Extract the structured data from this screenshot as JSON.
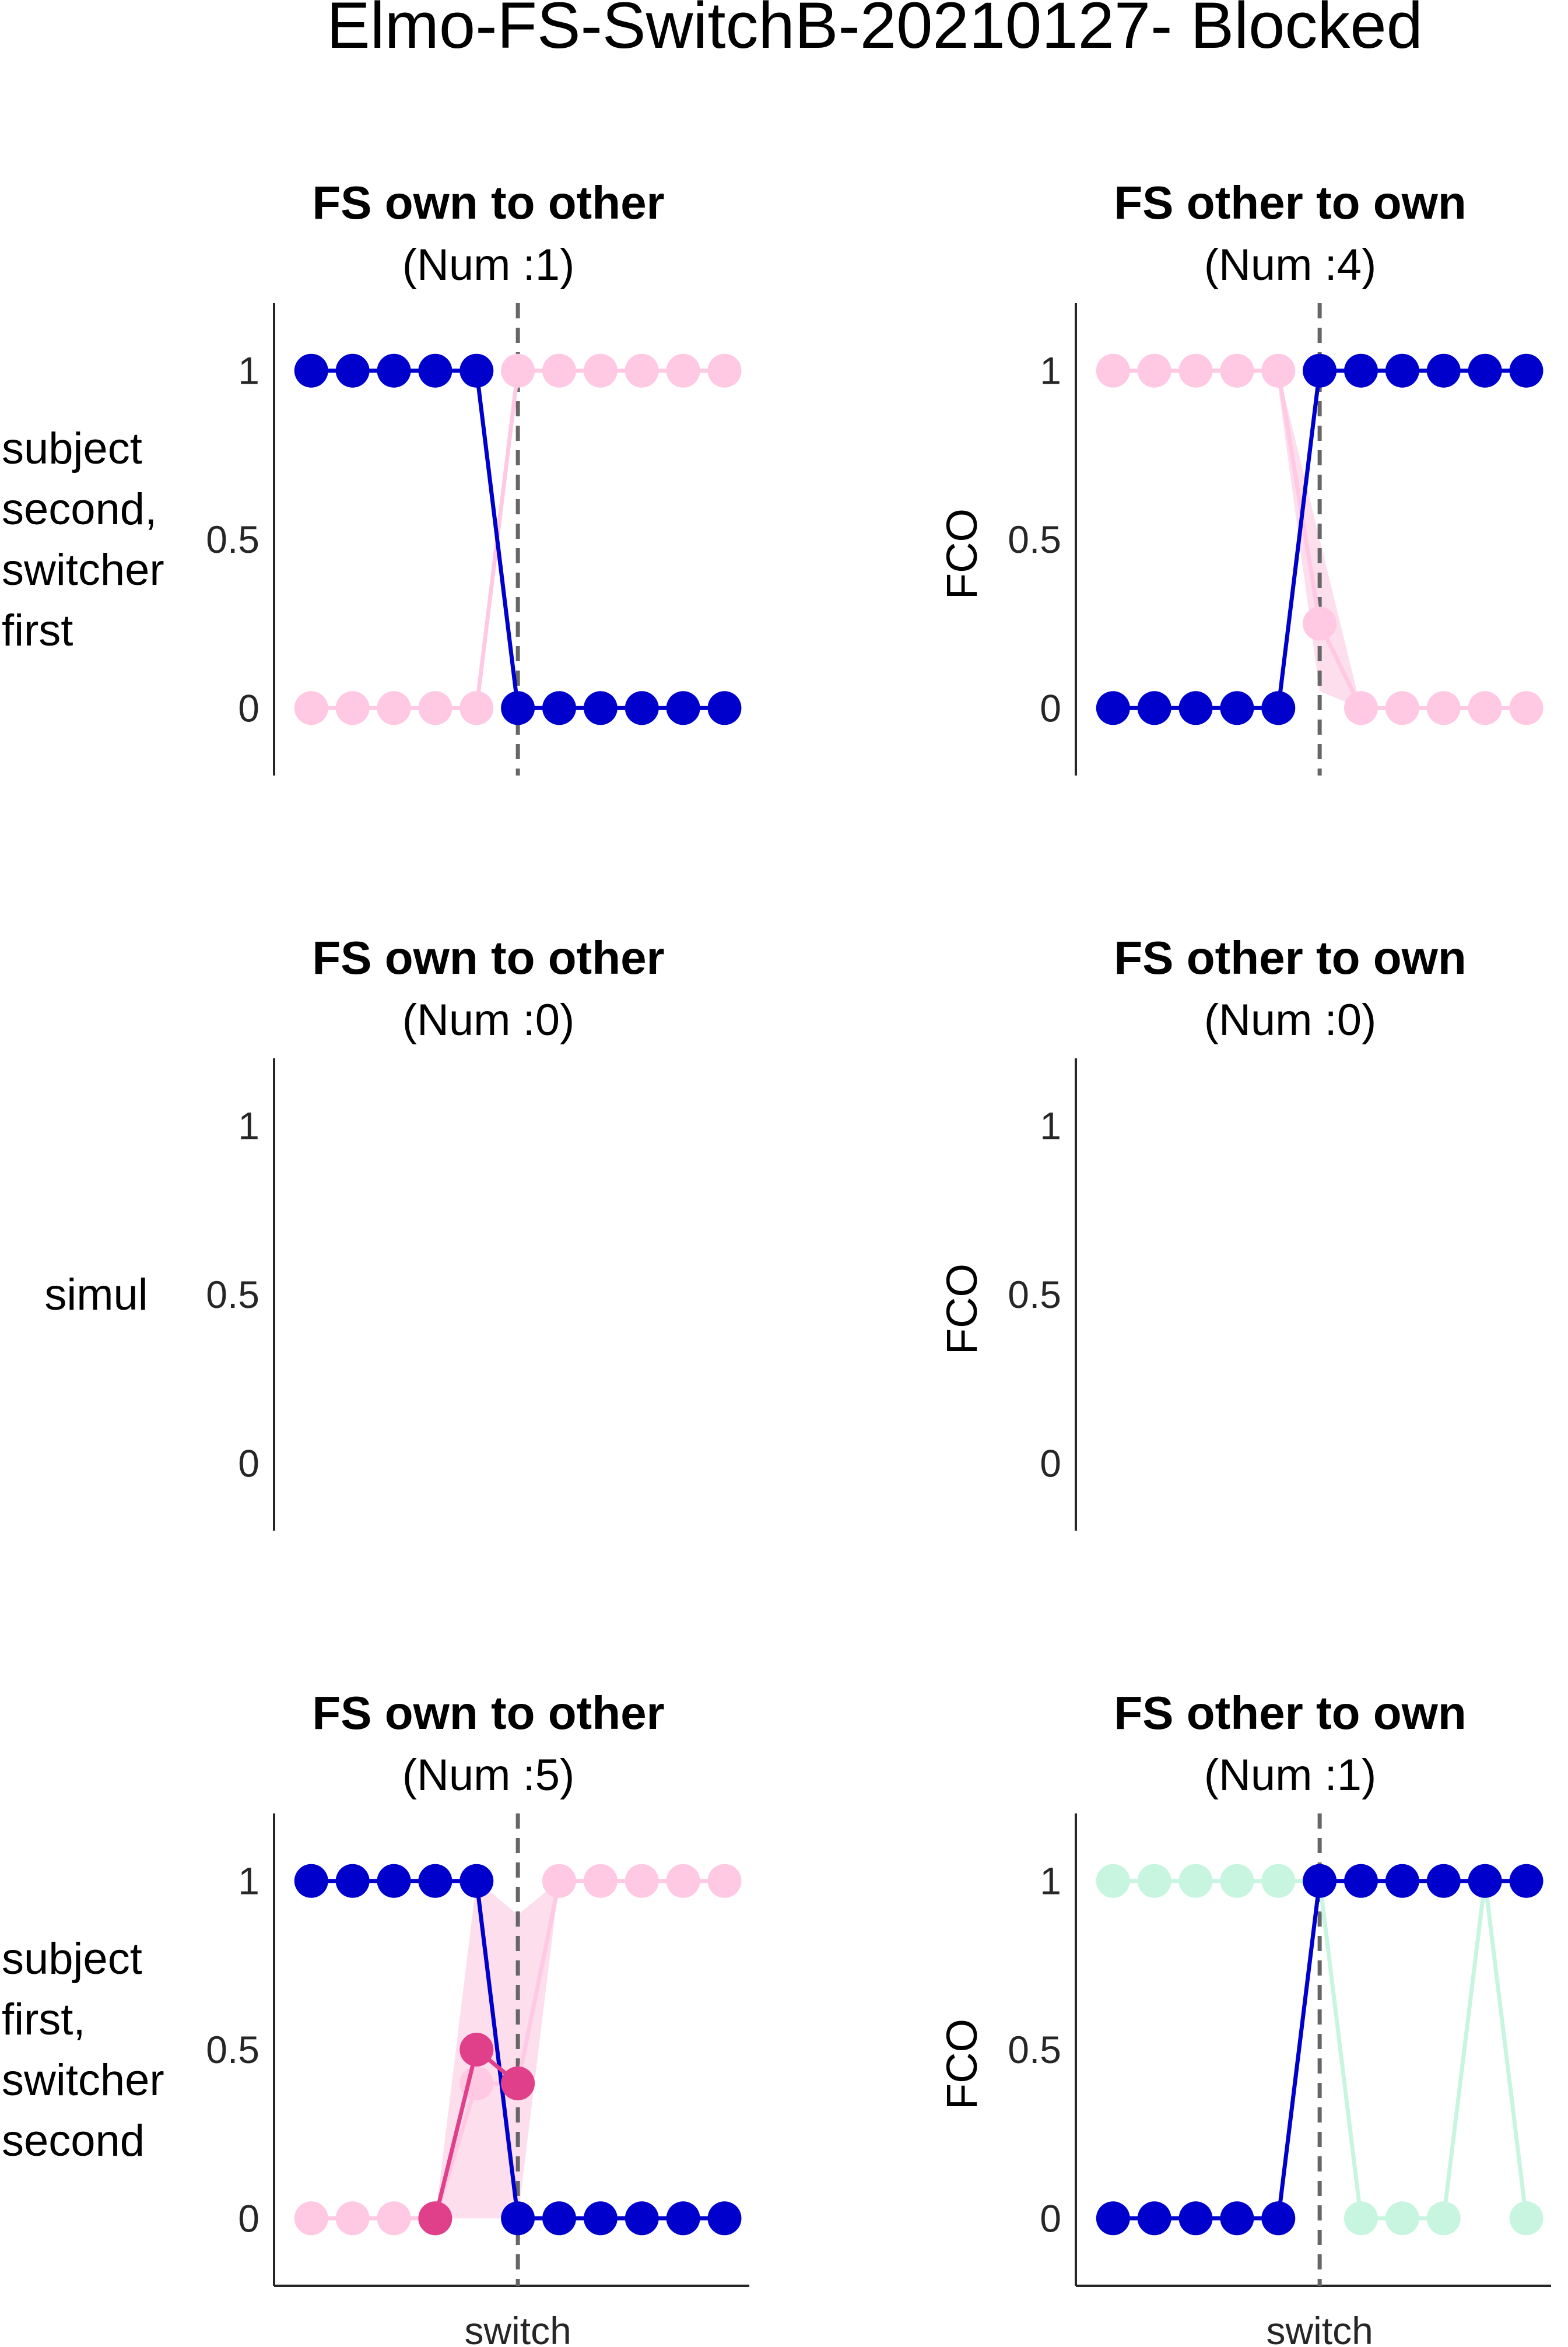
{
  "figure": {
    "title": "Elmo-FS-SwitchB-20210127- Blocked"
  },
  "colors": {
    "own": "#0000cc",
    "other": "#ffc8e3",
    "other_fill": "#f5a0c8",
    "mean_pink": "#e0408a",
    "mint": "#c8f5e0",
    "axis": "#262626",
    "switch_line": "#666666"
  },
  "chart_data": [
    {
      "type": "line",
      "title": "FS own to other",
      "subtitle": "(Num :1)",
      "row_label": "subject second, switcher first",
      "row_label_lines": [
        "subject",
        "second,",
        "switcher",
        "first"
      ],
      "ylabel": "",
      "xlabel": "",
      "ylim": [
        -0.2,
        1.2
      ],
      "yticks": [
        "0",
        "0.5",
        "1"
      ],
      "x": [
        -5,
        -4,
        -3,
        -2,
        -1,
        0,
        1,
        2,
        3,
        4,
        5
      ],
      "switch_x": 0,
      "series": [
        {
          "color": "own",
          "values": [
            1,
            1,
            1,
            1,
            1,
            0,
            0,
            0,
            0,
            0,
            0
          ]
        },
        {
          "color": "other",
          "values": [
            0,
            0,
            0,
            0,
            0,
            1,
            1,
            1,
            1,
            1,
            1
          ]
        }
      ]
    },
    {
      "type": "line",
      "title": "FS other to own",
      "subtitle": "(Num :4)",
      "row_label": "",
      "ylabel": "FCO",
      "xlabel": "",
      "ylim": [
        -0.2,
        1.2
      ],
      "yticks": [
        "0",
        "0.5",
        "1"
      ],
      "x": [
        -5,
        -4,
        -3,
        -2,
        -1,
        0,
        1,
        2,
        3,
        4,
        5
      ],
      "switch_x": 0,
      "series": [
        {
          "color": "own",
          "values": [
            0,
            0,
            0,
            0,
            0,
            1,
            1,
            1,
            1,
            1,
            1
          ]
        },
        {
          "color": "other",
          "values": [
            1,
            1,
            1,
            1,
            1,
            0.25,
            0,
            0,
            0,
            0,
            0
          ],
          "band": [
            [
              -1,
              1,
              0.95
            ],
            [
              0,
              0.5,
              0.05
            ],
            [
              1,
              0,
              0
            ]
          ]
        }
      ]
    },
    {
      "type": "line",
      "title": "FS own to other",
      "subtitle": "(Num :0)",
      "row_label": "simul",
      "row_label_lines": [
        "simul"
      ],
      "ylabel": "",
      "xlabel": "",
      "ylim": [
        -0.2,
        1.2
      ],
      "yticks": [
        "0",
        "0.5",
        "1"
      ],
      "x": [],
      "series": []
    },
    {
      "type": "line",
      "title": "FS other to own",
      "subtitle": "(Num :0)",
      "row_label": "",
      "ylabel": "FCO",
      "xlabel": "",
      "ylim": [
        -0.2,
        1.2
      ],
      "yticks": [
        "0",
        "0.5",
        "1"
      ],
      "x": [],
      "series": []
    },
    {
      "type": "line",
      "title": "FS own to other",
      "subtitle": "(Num :5)",
      "row_label": "subject first, switcher second",
      "row_label_lines": [
        "subject",
        "first,",
        "switcher",
        "second"
      ],
      "ylabel": "",
      "xlabel": "switch",
      "ylim": [
        -0.2,
        1.2
      ],
      "yticks": [
        "0",
        "0.5",
        "1"
      ],
      "x": [
        -5,
        -4,
        -3,
        -2,
        -1,
        0,
        1,
        2,
        3,
        4,
        5
      ],
      "switch_x": 0,
      "series": [
        {
          "color": "own",
          "values": [
            1,
            1,
            1,
            1,
            1,
            0,
            0,
            0,
            0,
            0,
            0
          ]
        },
        {
          "color": "other",
          "values": [
            0,
            0,
            0,
            0,
            0.4,
            0.4,
            1,
            1,
            1,
            1,
            1
          ],
          "band": [
            [
              -2,
              0,
              0
            ],
            [
              -1,
              1,
              0
            ],
            [
              0,
              0.9,
              0
            ],
            [
              1,
              1,
              1
            ]
          ]
        },
        {
          "color": "mean_pink",
          "values": [
            null,
            null,
            null,
            0,
            0.5,
            0.4,
            null,
            null,
            null,
            null,
            null
          ]
        }
      ]
    },
    {
      "type": "line",
      "title": "FS other to own",
      "subtitle": "(Num :1)",
      "row_label": "",
      "ylabel": "FCO",
      "xlabel": "switch",
      "ylim": [
        -0.2,
        1.2
      ],
      "yticks": [
        "0",
        "0.5",
        "1"
      ],
      "x": [
        -5,
        -4,
        -3,
        -2,
        -1,
        0,
        1,
        2,
        3,
        4,
        5
      ],
      "switch_x": 0,
      "series": [
        {
          "color": "own",
          "values": [
            0,
            0,
            0,
            0,
            0,
            1,
            1,
            1,
            1,
            1,
            1
          ]
        },
        {
          "color": "mint",
          "values": [
            1,
            1,
            1,
            1,
            1,
            1,
            0,
            0,
            0,
            1,
            0
          ]
        }
      ]
    }
  ]
}
